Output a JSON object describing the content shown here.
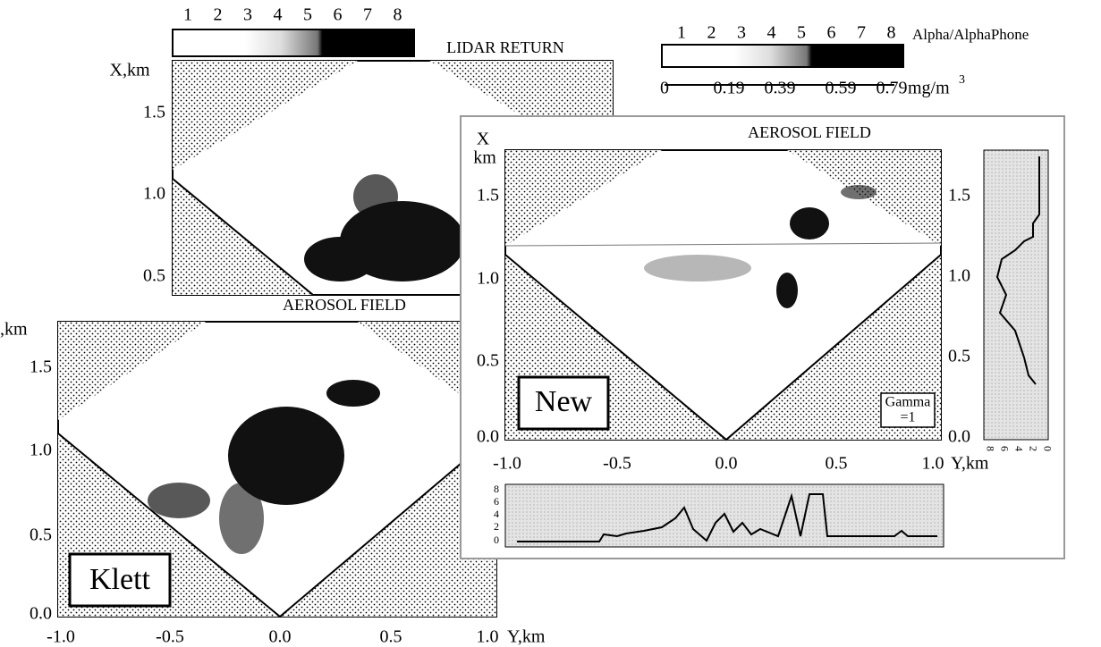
{
  "lidar_panel": {
    "scale_numbers": [
      "1",
      "2",
      "3",
      "4",
      "5",
      "6",
      "7",
      "8"
    ],
    "title": "LIDAR RETURN",
    "y_axis_label": "X,km",
    "y_ticks": [
      "1.5",
      "1.0",
      "0.5"
    ]
  },
  "klett_panel": {
    "title": "AEROSOL FIELD",
    "y_axis_label": ",km",
    "y_ticks": [
      "1.5",
      "1.0",
      "0.5",
      "0.0"
    ],
    "x_ticks": [
      "-1.0",
      "-0.5",
      "0.0",
      "0.5",
      "1.0"
    ],
    "x_axis_label": "Y,km",
    "method_label": "Klett"
  },
  "new_panel": {
    "title": "AEROSOL FIELD",
    "y_axis_label": [
      "X",
      "km"
    ],
    "y_ticks": [
      "1.5",
      "1.0",
      "0.5",
      "0.0"
    ],
    "right_y_ticks": [
      "1.5",
      "1.0",
      "0.5",
      "0.0"
    ],
    "x_ticks": [
      "-1.0",
      "-0.5",
      "0.0",
      "0.5",
      "1.0"
    ],
    "x_axis_label": "Y,km",
    "method_label": "New",
    "gamma_label": [
      "Gamma",
      "=1"
    ],
    "bottom_profile_ticks": [
      "8",
      "6",
      "4",
      "2",
      "0"
    ],
    "right_profile_ticks": [
      "8",
      "6",
      "4",
      "2",
      "0"
    ]
  },
  "legend": {
    "scale_numbers": [
      "1",
      "2",
      "3",
      "4",
      "5",
      "6",
      "7",
      "8"
    ],
    "label": "Alpha/AlphaPhone",
    "concentration_ticks": [
      "0",
      "0.19",
      "0.39",
      "0.59",
      "0.79"
    ],
    "unit": "mg/m",
    "unit_exponent": "3"
  }
}
